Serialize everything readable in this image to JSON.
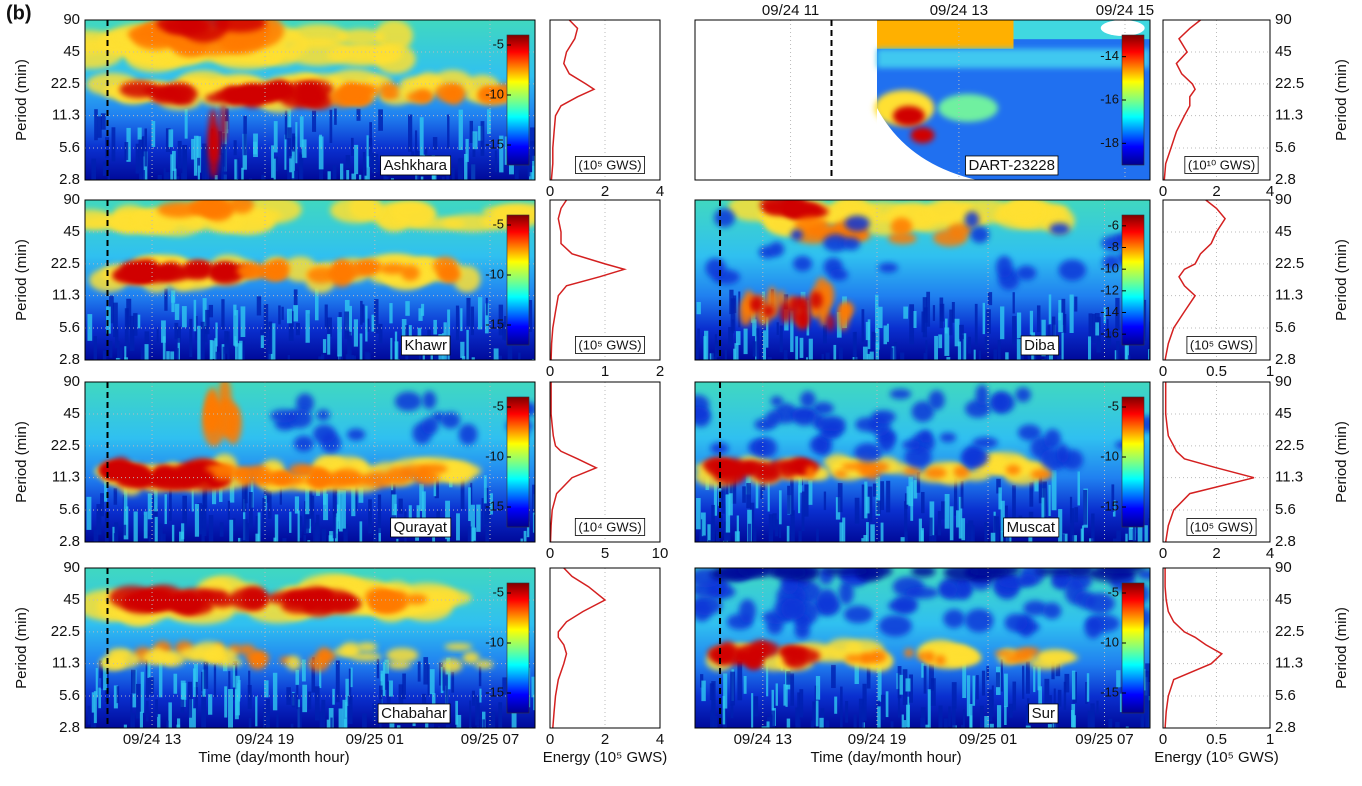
{
  "figure_label": "(b)",
  "chart_data": [
    {
      "type": "spectrogram",
      "station": "Ashkhara",
      "ylabel": "Period (min)",
      "ylim": [
        2.8,
        90
      ],
      "yticks": [
        2.8,
        5.6,
        11.3,
        22.5,
        45,
        90
      ],
      "log_y": true,
      "clim": [
        -17,
        -4
      ],
      "cticks": [
        -5,
        -10,
        -15
      ]
    },
    {
      "type": "line",
      "unit_label": "(10⁵ GWS)",
      "values": [
        0.05,
        0.1,
        0.1,
        0.15,
        0.2,
        0.4,
        1.0,
        1.6,
        1.3,
        0.7,
        0.5,
        0.6,
        0.9,
        1.0,
        0.7
      ],
      "periods": [
        2.8,
        4,
        5.6,
        8,
        11.3,
        14,
        17,
        20,
        22.5,
        28,
        35,
        45,
        60,
        75,
        90
      ],
      "xlim": [
        0,
        4
      ],
      "xticks": [
        0,
        2,
        4
      ],
      "ylim": [
        2.8,
        90
      ],
      "log_y": true,
      "color": "#d42020"
    },
    {
      "type": "spectrogram",
      "station": "DART-23228",
      "ylim": [
        2.8,
        90
      ],
      "log_y": true,
      "clim": [
        -19,
        -13
      ],
      "cticks": [
        -14,
        -16,
        -18
      ],
      "xtick_labels": [
        "09/24 11",
        "09/24 13",
        "09/24 15"
      ],
      "xaxis": "top"
    },
    {
      "type": "line",
      "unit_label": "(10¹⁰ GWS)",
      "ylabel": "Period (min)",
      "values": [
        0.05,
        0.1,
        0.3,
        0.5,
        0.8,
        1.0,
        1.0,
        1.2,
        1.1,
        0.7,
        0.5,
        0.9,
        0.6,
        1.0,
        1.4
      ],
      "periods": [
        2.8,
        4,
        5.6,
        8,
        11.3,
        14,
        17,
        20,
        22.5,
        28,
        35,
        45,
        60,
        75,
        90
      ],
      "xlim": [
        0,
        4
      ],
      "xticks": [
        0,
        2,
        4
      ],
      "ylim": [
        2.8,
        90
      ],
      "yticks": [
        2.8,
        5.6,
        11.3,
        22.5,
        45,
        90
      ],
      "log_y": true,
      "color": "#d42020"
    },
    {
      "type": "spectrogram",
      "station": "Khawr",
      "ylabel": "Period (min)",
      "ylim": [
        2.8,
        90
      ],
      "yticks": [
        2.8,
        5.6,
        11.3,
        22.5,
        45,
        90
      ],
      "log_y": true,
      "clim": [
        -17,
        -4
      ],
      "cticks": [
        -5,
        -10,
        -15
      ]
    },
    {
      "type": "line",
      "unit_label": "(10⁵ GWS)",
      "values": [
        0.02,
        0.03,
        0.05,
        0.1,
        0.15,
        0.3,
        0.9,
        1.35,
        1.0,
        0.4,
        0.2,
        0.2,
        0.15,
        0.2,
        0.3
      ],
      "periods": [
        2.8,
        4,
        5.6,
        8,
        11.3,
        14,
        17,
        20,
        22.5,
        28,
        35,
        45,
        60,
        75,
        90
      ],
      "xlim": [
        0,
        2
      ],
      "xticks": [
        0,
        1,
        2
      ],
      "ylim": [
        2.8,
        90
      ],
      "log_y": true,
      "color": "#d42020"
    },
    {
      "type": "spectrogram",
      "station": "Diba",
      "ylim": [
        2.8,
        90
      ],
      "log_y": true,
      "clim": [
        -17,
        -5
      ],
      "cticks": [
        -6,
        -8,
        -10,
        -12,
        -14,
        -16
      ]
    },
    {
      "type": "line",
      "unit_label": "(10⁵ GWS)",
      "ylabel": "Period (min)",
      "values": [
        0.02,
        0.05,
        0.1,
        0.2,
        0.3,
        0.2,
        0.15,
        0.2,
        0.3,
        0.35,
        0.45,
        0.5,
        0.58,
        0.5,
        0.4
      ],
      "periods": [
        2.8,
        4,
        5.6,
        8,
        11.3,
        14,
        17,
        20,
        22.5,
        28,
        35,
        45,
        60,
        75,
        90
      ],
      "xlim": [
        0,
        1
      ],
      "xticks": [
        0,
        0.5,
        1
      ],
      "ylim": [
        2.8,
        90
      ],
      "yticks": [
        2.8,
        5.6,
        11.3,
        22.5,
        45,
        90
      ],
      "log_y": true,
      "color": "#d42020"
    },
    {
      "type": "spectrogram",
      "station": "Qurayat",
      "ylabel": "Period (min)",
      "ylim": [
        2.8,
        90
      ],
      "yticks": [
        2.8,
        5.6,
        11.3,
        22.5,
        45,
        90
      ],
      "log_y": true,
      "clim": [
        -17,
        -4
      ],
      "cticks": [
        -5,
        -10,
        -15
      ]
    },
    {
      "type": "line",
      "unit_label": "(10⁴ GWS)",
      "values": [
        0.05,
        0.1,
        0.2,
        0.6,
        2.0,
        4.2,
        2.5,
        1.0,
        0.5,
        0.3,
        0.2,
        0.1,
        0.1,
        0.1,
        0.1
      ],
      "periods": [
        2.8,
        4,
        5.6,
        8,
        11.3,
        14,
        17,
        20,
        22.5,
        28,
        35,
        45,
        60,
        75,
        90
      ],
      "xlim": [
        0,
        10
      ],
      "xticks": [
        0,
        5,
        10
      ],
      "ylim": [
        2.8,
        90
      ],
      "log_y": true,
      "color": "#d42020"
    },
    {
      "type": "spectrogram",
      "station": "Muscat",
      "ylim": [
        2.8,
        90
      ],
      "log_y": true,
      "clim": [
        -17,
        -4
      ],
      "cticks": [
        -5,
        -10,
        -15
      ]
    },
    {
      "type": "line",
      "unit_label": "(10⁵ GWS)",
      "ylabel": "Period (min)",
      "values": [
        0.1,
        0.2,
        0.4,
        1.0,
        3.4,
        2.0,
        0.8,
        0.5,
        0.4,
        0.2,
        0.15,
        0.1,
        0.1,
        0.1,
        0.1
      ],
      "periods": [
        2.8,
        4,
        5.6,
        8,
        11.3,
        14,
        17,
        20,
        22.5,
        28,
        35,
        45,
        60,
        75,
        90
      ],
      "xlim": [
        0,
        4
      ],
      "xticks": [
        0,
        2,
        4
      ],
      "ylim": [
        2.8,
        90
      ],
      "yticks": [
        2.8,
        5.6,
        11.3,
        22.5,
        45,
        90
      ],
      "log_y": true,
      "color": "#d42020"
    },
    {
      "type": "spectrogram",
      "station": "Chabahar",
      "ylabel": "Period (min)",
      "xlabel": "Time (day/month hour)",
      "ylim": [
        2.8,
        90
      ],
      "yticks": [
        2.8,
        5.6,
        11.3,
        22.5,
        45,
        90
      ],
      "log_y": true,
      "clim": [
        -17,
        -4
      ],
      "cticks": [
        -5,
        -10,
        -15
      ],
      "xtick_labels": [
        "09/24 13",
        "09/24 19",
        "09/25 01",
        "09/25 07"
      ],
      "xaxis": "bottom"
    },
    {
      "type": "line",
      "xlabel": "Energy (10⁵ GWS)",
      "values": [
        0.1,
        0.15,
        0.2,
        0.3,
        0.5,
        0.6,
        0.5,
        0.3,
        0.3,
        0.6,
        1.2,
        2.0,
        1.4,
        0.8,
        0.5
      ],
      "periods": [
        2.8,
        4,
        5.6,
        8,
        11.3,
        14,
        17,
        20,
        22.5,
        28,
        35,
        45,
        60,
        75,
        90
      ],
      "xlim": [
        0,
        4
      ],
      "xticks": [
        0,
        2,
        4
      ],
      "ylim": [
        2.8,
        90
      ],
      "log_y": true,
      "color": "#d42020"
    },
    {
      "type": "spectrogram",
      "station": "Sur",
      "xlabel": "Time (day/month hour)",
      "ylim": [
        2.8,
        90
      ],
      "log_y": true,
      "clim": [
        -17,
        -4
      ],
      "cticks": [
        -5,
        -10,
        -15
      ],
      "xtick_labels": [
        "09/24 13",
        "09/24 19",
        "09/25 01",
        "09/25 07"
      ],
      "xaxis": "bottom"
    },
    {
      "type": "line",
      "ylabel": "Period (min)",
      "xlabel": "Energy (10⁵ GWS)",
      "values": [
        0.02,
        0.03,
        0.05,
        0.1,
        0.45,
        0.55,
        0.4,
        0.3,
        0.2,
        0.1,
        0.05,
        0.03,
        0.02,
        0.02,
        0.02
      ],
      "periods": [
        2.8,
        4,
        5.6,
        8,
        11.3,
        14,
        17,
        20,
        22.5,
        28,
        35,
        45,
        60,
        75,
        90
      ],
      "xlim": [
        0,
        1
      ],
      "xticks": [
        0,
        0.5,
        1
      ],
      "ylim": [
        2.8,
        90
      ],
      "yticks": [
        2.8,
        5.6,
        11.3,
        22.5,
        45,
        90
      ],
      "log_y": true,
      "color": "#d42020"
    }
  ]
}
